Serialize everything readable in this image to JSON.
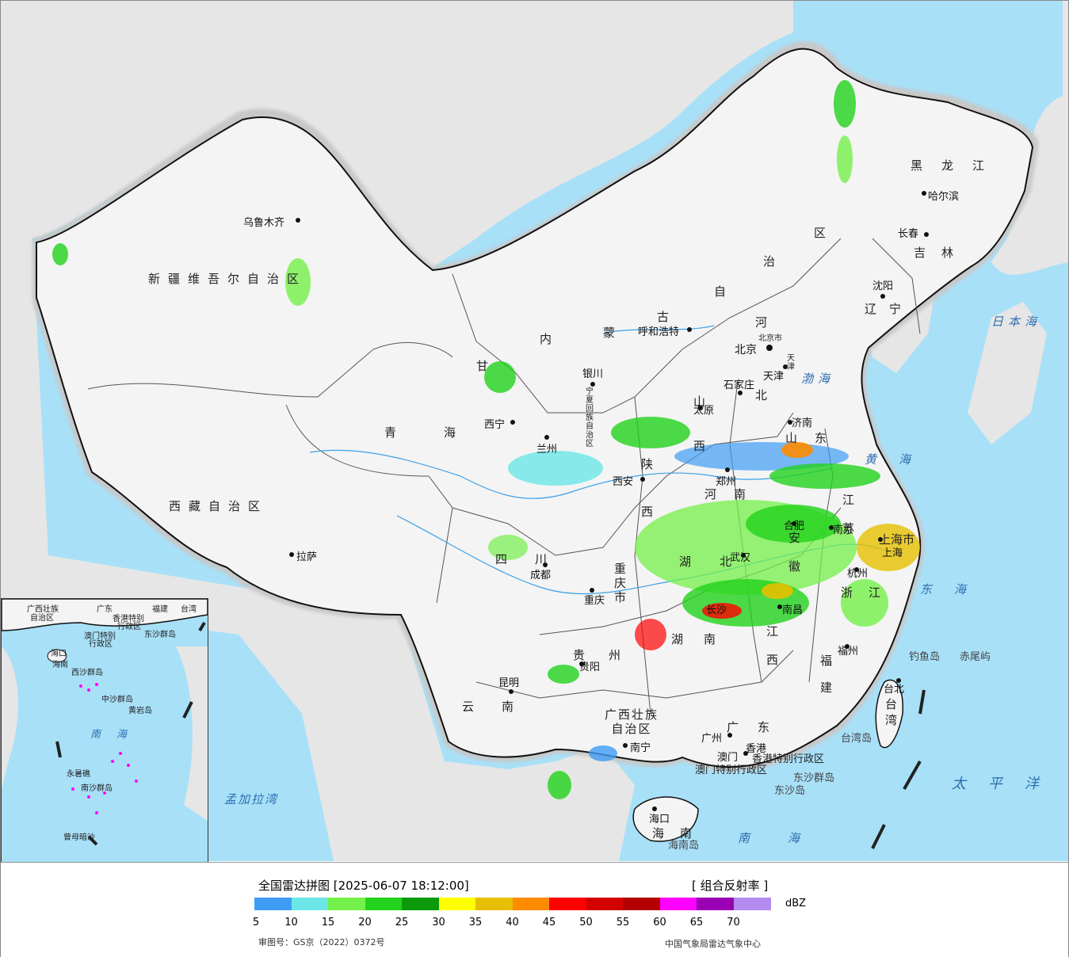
{
  "map": {
    "provinces": [
      {
        "id": "xinjiang",
        "text": "新疆维吾尔自治区"
      },
      {
        "id": "xizang",
        "text": "西藏自治区"
      },
      {
        "id": "qinghai",
        "text": "青　　海"
      },
      {
        "id": "gansu",
        "text": "甘"
      },
      {
        "id": "neimenggu1",
        "text": "内"
      },
      {
        "id": "neimenggu2",
        "text": "蒙"
      },
      {
        "id": "neimenggu3",
        "text": "古"
      },
      {
        "id": "neimenggu4",
        "text": "自"
      },
      {
        "id": "neimenggu5",
        "text": "治"
      },
      {
        "id": "neimenggu6",
        "text": "区"
      },
      {
        "id": "heilongjiang",
        "text": "黑龙江"
      },
      {
        "id": "jilin",
        "text": "吉林"
      },
      {
        "id": "liaoning",
        "text": "辽宁"
      },
      {
        "id": "hebei1",
        "text": "河"
      },
      {
        "id": "hebei2",
        "text": "北"
      },
      {
        "id": "shanxi",
        "text": "山西"
      },
      {
        "id": "shandong",
        "text": "山东"
      },
      {
        "id": "henan",
        "text": "河南"
      },
      {
        "id": "shaanxi",
        "text": "陕西"
      },
      {
        "id": "sichuan",
        "text": "四　川"
      },
      {
        "id": "chongqing",
        "text": "重庆市"
      },
      {
        "id": "hubei",
        "text": "湖北"
      },
      {
        "id": "hunan",
        "text": "湖南"
      },
      {
        "id": "jiangxi",
        "text": "江西"
      },
      {
        "id": "anhui",
        "text": "安徽"
      },
      {
        "id": "jiangsu",
        "text": "江苏"
      },
      {
        "id": "zhejiang",
        "text": "浙江"
      },
      {
        "id": "fujian",
        "text": "福建"
      },
      {
        "id": "guizhou",
        "text": "贵州"
      },
      {
        "id": "yunnan",
        "text": "云　南"
      },
      {
        "id": "guangxi",
        "text": "广西壮族\n自治区"
      },
      {
        "id": "guangdong",
        "text": "广东"
      },
      {
        "id": "hainan",
        "text": "海南"
      },
      {
        "id": "taiwan",
        "text": "台湾"
      },
      {
        "id": "ningxia",
        "text": "宁夏回族自治区"
      },
      {
        "id": "shanghai",
        "text": "上海市"
      },
      {
        "id": "tianjin",
        "text": "天津"
      },
      {
        "id": "beijing",
        "text": "北京市"
      },
      {
        "id": "hk",
        "text": "香港特别行政区"
      },
      {
        "id": "macau",
        "text": "澳门特别行政区"
      }
    ],
    "cities": [
      {
        "id": "urumqi",
        "text": "乌鲁木齐"
      },
      {
        "id": "lhasa",
        "text": "拉萨"
      },
      {
        "id": "xining",
        "text": "西宁"
      },
      {
        "id": "lanzhou",
        "text": "兰州"
      },
      {
        "id": "yinchuan",
        "text": "银川"
      },
      {
        "id": "hohhot",
        "text": "呼和浩特"
      },
      {
        "id": "harbin",
        "text": "哈尔滨"
      },
      {
        "id": "changchun",
        "text": "长春"
      },
      {
        "id": "shenyang",
        "text": "沈阳"
      },
      {
        "id": "beijing",
        "text": "北京"
      },
      {
        "id": "tianjin",
        "text": "天津"
      },
      {
        "id": "shijiazhuang",
        "text": "石家庄"
      },
      {
        "id": "taiyuan",
        "text": "太原"
      },
      {
        "id": "jinan",
        "text": "济南"
      },
      {
        "id": "zhengzhou",
        "text": "郑州"
      },
      {
        "id": "xian",
        "text": "西安"
      },
      {
        "id": "chengdu",
        "text": "成都"
      },
      {
        "id": "chongqing",
        "text": "重庆"
      },
      {
        "id": "wuhan",
        "text": "武汉"
      },
      {
        "id": "hefei",
        "text": "合肥"
      },
      {
        "id": "nanjing",
        "text": "南京"
      },
      {
        "id": "shanghai",
        "text": "上海"
      },
      {
        "id": "hangzhou",
        "text": "杭州"
      },
      {
        "id": "nanchang",
        "text": "南昌"
      },
      {
        "id": "changsha",
        "text": "长沙"
      },
      {
        "id": "fuzhou",
        "text": "福州"
      },
      {
        "id": "taibei",
        "text": "台北"
      },
      {
        "id": "guiyang",
        "text": "贵阳"
      },
      {
        "id": "kunming",
        "text": "昆明"
      },
      {
        "id": "nanning",
        "text": "南宁"
      },
      {
        "id": "guangzhou",
        "text": "广州"
      },
      {
        "id": "xianggang",
        "text": "香港"
      },
      {
        "id": "aomen",
        "text": "澳门"
      },
      {
        "id": "haikou",
        "text": "海口"
      }
    ],
    "seas": [
      {
        "id": "riben",
        "text": "日本海"
      },
      {
        "id": "bohai",
        "text": "渤海"
      },
      {
        "id": "huanghai",
        "text": "黄海"
      },
      {
        "id": "donghai",
        "text": "东海"
      },
      {
        "id": "taipingyang",
        "text": "太平洋"
      },
      {
        "id": "nanhai",
        "text": "南海"
      },
      {
        "id": "mengjiala",
        "text": "孟加拉湾"
      }
    ],
    "islands": [
      {
        "id": "diaoyu",
        "text": "钓鱼岛"
      },
      {
        "id": "chiwei",
        "text": "赤尾屿"
      },
      {
        "id": "dongsha1",
        "text": "东沙群岛"
      },
      {
        "id": "dongsha2",
        "text": "东沙岛"
      },
      {
        "id": "taiwandao",
        "text": "台湾岛"
      },
      {
        "id": "hainandao",
        "text": "海南岛"
      }
    ],
    "inset": {
      "labels": [
        "广西壮族",
        "自治区",
        "广东",
        "福建",
        "台湾",
        "香港特别",
        "行政区",
        "澳门特别",
        "行政区",
        "东沙群岛",
        "海口",
        "海南",
        "西沙群岛",
        "中沙群岛",
        "黄岩岛",
        "南海",
        "永暑礁",
        "南沙群岛",
        "曾母暗沙"
      ]
    }
  },
  "legend": {
    "title": "全国雷达拼图 [2025-06-07 18:12:00]",
    "product": "[ 组合反射率 ]",
    "unit": "dBZ",
    "colors": [
      "#3f9cf5",
      "#6ce6e6",
      "#74f04a",
      "#22d21c",
      "#0c9a0c",
      "#ffff00",
      "#e6c000",
      "#ff8c00",
      "#ff0000",
      "#d20000",
      "#b40000",
      "#ff00ff",
      "#9a00b4",
      "#b48cf0"
    ],
    "ticks": [
      "5",
      "10",
      "15",
      "20",
      "25",
      "30",
      "35",
      "40",
      "45",
      "50",
      "55",
      "60",
      "65",
      "70"
    ],
    "approval": "审图号：GS京（2022）0372号",
    "credit": "中国气象局雷达气象中心"
  }
}
